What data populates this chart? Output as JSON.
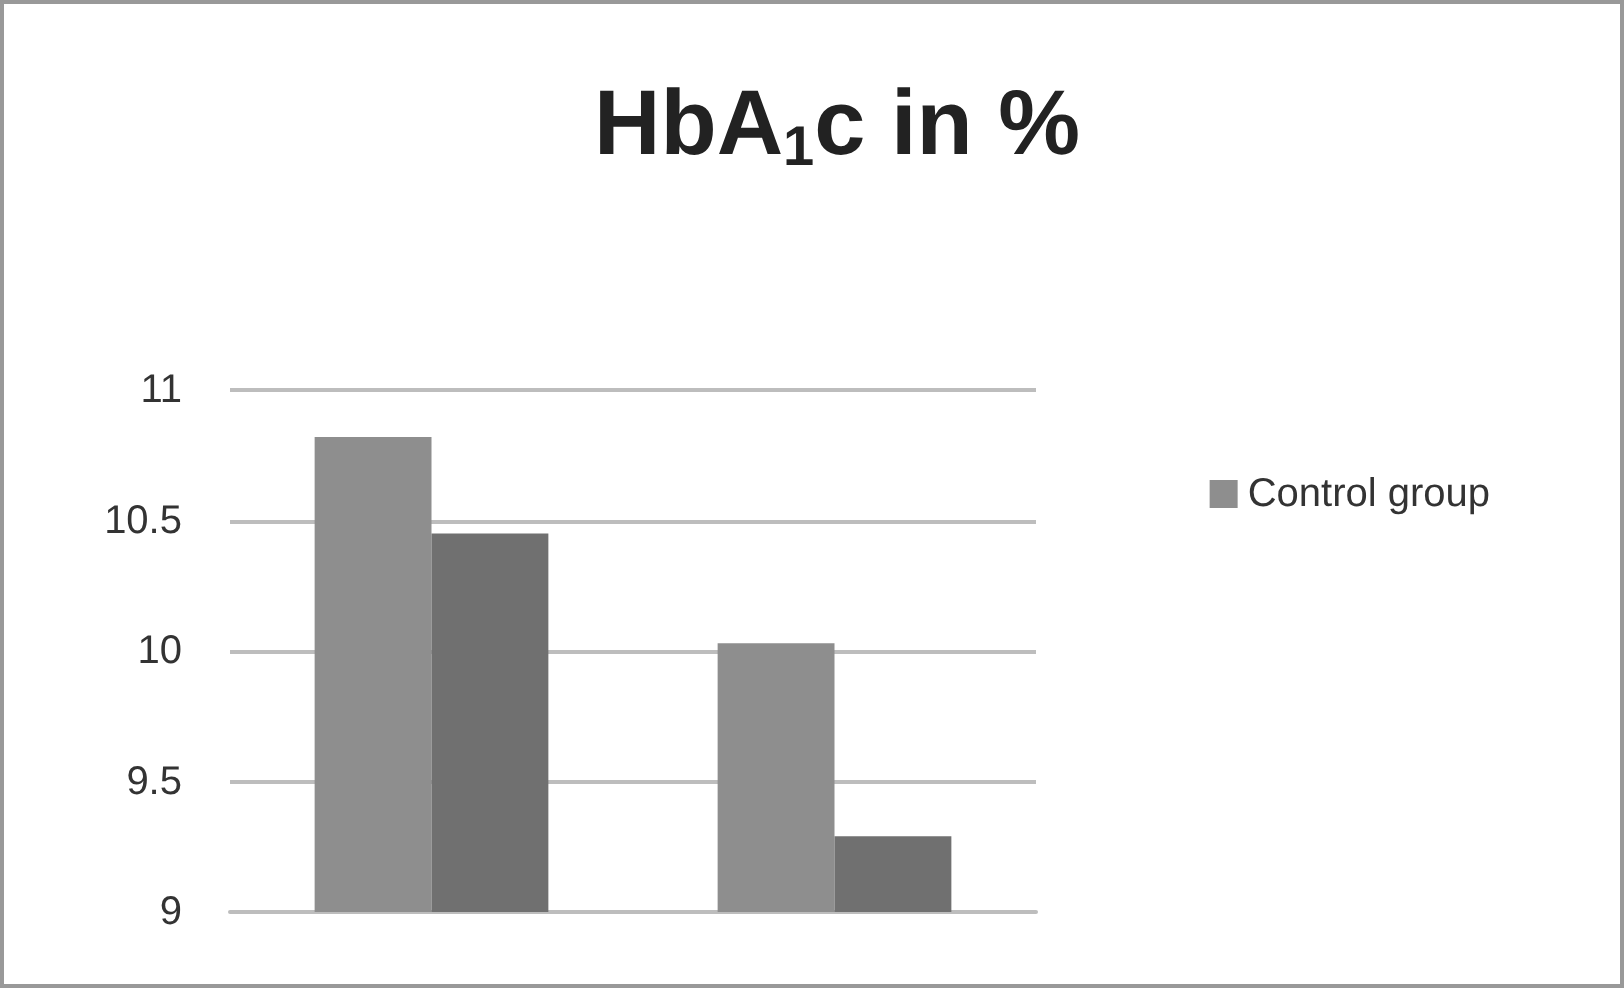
{
  "chart_data": {
    "type": "bar",
    "title": "HbA$_{1}$c in %",
    "categories": [
      null,
      null
    ],
    "series": [
      {
        "name": "Control group",
        "color": "#8e8e8e",
        "values": [
          10.82,
          10.03
        ]
      },
      {
        "color": "#707070",
        "values": [
          10.45,
          9.29
        ]
      }
    ],
    "ylim": [
      9,
      11
    ],
    "yticks": [
      9,
      9.5,
      10,
      10.5,
      11
    ],
    "grid": "y",
    "legend": "right"
  }
}
